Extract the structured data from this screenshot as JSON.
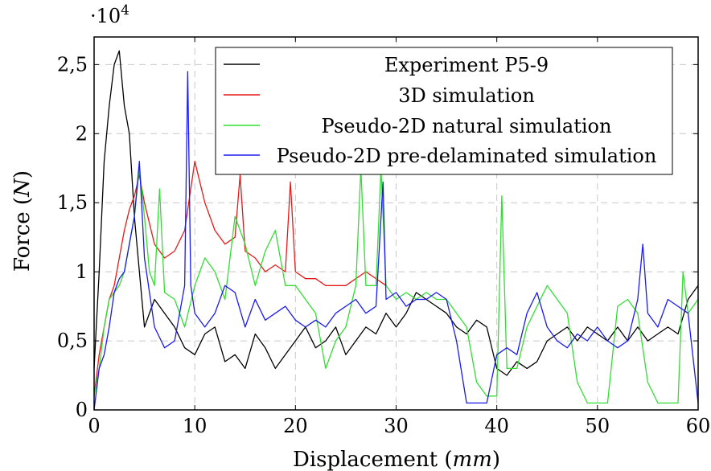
{
  "chart_data": {
    "type": "line",
    "title": "",
    "xlabel": "Displacement",
    "xlabel_unit": "mm",
    "ylabel": "Force",
    "ylabel_unit": "N",
    "y_multiplier": "·10",
    "y_multiplier_exp": "4",
    "xlim": [
      0,
      60
    ],
    "ylim": [
      0,
      2.7
    ],
    "x_ticks": [
      0,
      10,
      20,
      30,
      40,
      50,
      60
    ],
    "x_tick_labels": [
      "0",
      "10",
      "20",
      "30",
      "40",
      "50",
      "60"
    ],
    "y_ticks": [
      0,
      0.5,
      1,
      1.5,
      2,
      2.5
    ],
    "y_tick_labels": [
      "0",
      "0,5",
      "1",
      "1,5",
      "2",
      "2,5"
    ],
    "grid": true,
    "legend_position": "top-right",
    "series": [
      {
        "name": "Experiment P5-9",
        "color": "#000000",
        "x": [
          0,
          0.5,
          1,
          1.5,
          2,
          2.5,
          3,
          3.5,
          4,
          4.5,
          5,
          6,
          7,
          8,
          9,
          10,
          11,
          12,
          13,
          14,
          15,
          16,
          17,
          18,
          19,
          20,
          21,
          22,
          23,
          24,
          25,
          26,
          27,
          28,
          29,
          30,
          31,
          32,
          33,
          34,
          35,
          36,
          37,
          38,
          39,
          40,
          41,
          42,
          43,
          44,
          45,
          46,
          47,
          48,
          49,
          50,
          51,
          52,
          53,
          54,
          55,
          56,
          57,
          58,
          59,
          60
        ],
        "y": [
          0.3,
          1.0,
          1.8,
          2.2,
          2.5,
          2.6,
          2.2,
          2.0,
          1.4,
          1.0,
          0.6,
          0.8,
          0.7,
          0.6,
          0.45,
          0.4,
          0.55,
          0.6,
          0.35,
          0.4,
          0.3,
          0.55,
          0.45,
          0.3,
          0.4,
          0.5,
          0.6,
          0.45,
          0.5,
          0.6,
          0.4,
          0.5,
          0.6,
          0.55,
          0.7,
          0.6,
          0.7,
          0.85,
          0.8,
          0.75,
          0.7,
          0.6,
          0.55,
          0.65,
          0.6,
          0.3,
          0.25,
          0.35,
          0.3,
          0.35,
          0.5,
          0.55,
          0.6,
          0.5,
          0.6,
          0.55,
          0.5,
          0.6,
          0.5,
          0.6,
          0.5,
          0.55,
          0.6,
          0.55,
          0.8,
          0.9
        ]
      },
      {
        "name": "3D simulation",
        "color": "#e41a1a",
        "x": [
          0,
          0.5,
          1,
          1.5,
          2,
          2.5,
          3,
          3.5,
          4,
          4.5,
          5,
          6,
          7,
          8,
          9,
          10,
          11,
          12,
          13,
          14,
          14.5,
          15,
          16,
          17,
          18,
          19,
          19.5,
          20,
          21,
          22,
          23,
          24,
          25,
          26,
          27,
          28,
          29
        ],
        "y": [
          0.1,
          0.4,
          0.6,
          0.8,
          0.9,
          1.1,
          1.3,
          1.45,
          1.55,
          1.7,
          1.5,
          1.2,
          1.1,
          1.15,
          1.3,
          1.8,
          1.5,
          1.3,
          1.2,
          1.25,
          1.7,
          1.15,
          1.1,
          1.0,
          1.05,
          1.0,
          1.65,
          1.0,
          0.95,
          0.95,
          0.9,
          0.9,
          0.9,
          0.95,
          1.0,
          0.95,
          0.9
        ]
      },
      {
        "name": "Pseudo-2D natural simulation",
        "color": "#33dd33",
        "x": [
          0,
          0.5,
          1,
          1.5,
          2,
          2.5,
          3,
          3.5,
          4,
          4.5,
          5,
          5.5,
          6,
          6.5,
          7,
          8,
          9,
          10,
          11,
          12,
          13,
          14,
          15,
          16,
          17,
          18,
          19,
          20,
          21,
          22,
          23,
          24,
          25,
          26,
          26.5,
          27,
          28,
          28.5,
          29,
          30,
          31,
          32,
          33,
          34,
          35,
          36,
          37,
          38,
          39,
          40,
          40.5,
          41,
          42,
          43,
          44,
          45,
          46,
          47,
          48,
          49,
          50,
          51,
          52,
          53,
          54,
          55,
          56,
          57,
          58,
          58.5,
          59,
          60
        ],
        "y": [
          0.1,
          0.3,
          0.6,
          0.8,
          0.85,
          0.9,
          1.0,
          1.2,
          1.4,
          1.75,
          1.4,
          1.0,
          0.9,
          1.6,
          0.85,
          0.8,
          0.6,
          0.9,
          1.1,
          1.0,
          0.8,
          1.4,
          1.2,
          0.9,
          1.15,
          1.3,
          0.9,
          0.9,
          0.8,
          0.7,
          0.3,
          0.5,
          0.6,
          0.9,
          1.75,
          0.9,
          0.9,
          1.75,
          0.9,
          0.8,
          0.85,
          0.8,
          0.85,
          0.8,
          0.8,
          0.7,
          0.6,
          0.2,
          0.1,
          0.1,
          1.55,
          0.3,
          0.3,
          0.6,
          0.75,
          0.9,
          0.8,
          0.7,
          0.2,
          0.05,
          0.05,
          0.05,
          0.75,
          0.8,
          0.7,
          0.2,
          0.05,
          0.05,
          0.05,
          1.0,
          0.7,
          0.8
        ]
      },
      {
        "name": "Pseudo-2D pre-delaminated simulation",
        "color": "#1a1aee",
        "x": [
          0,
          0.5,
          1,
          1.5,
          2,
          2.5,
          3,
          3.5,
          4,
          4.5,
          5,
          6,
          7,
          8,
          9,
          9.3,
          9.6,
          10,
          11,
          12,
          13,
          14,
          15,
          16,
          17,
          18,
          19,
          20,
          21,
          22,
          23,
          24,
          25,
          26,
          27,
          28,
          28.7,
          29,
          30,
          31,
          32,
          33,
          34,
          35,
          36,
          37,
          38,
          39,
          40,
          41,
          42,
          43,
          44,
          45,
          46,
          47,
          48,
          49,
          50,
          51,
          52,
          53,
          54,
          54.5,
          55,
          56,
          57,
          58,
          59,
          60
        ],
        "y": [
          0.0,
          0.3,
          0.4,
          0.6,
          0.85,
          0.95,
          1.0,
          1.2,
          1.4,
          1.8,
          1.1,
          0.6,
          0.45,
          0.5,
          0.9,
          2.45,
          0.9,
          0.7,
          0.6,
          0.7,
          0.9,
          0.85,
          0.6,
          0.8,
          0.65,
          0.7,
          0.75,
          0.65,
          0.6,
          0.65,
          0.6,
          0.7,
          0.75,
          0.8,
          0.7,
          0.75,
          1.65,
          0.8,
          0.85,
          0.75,
          0.8,
          0.8,
          0.85,
          0.8,
          0.5,
          0.05,
          0.05,
          0.05,
          0.4,
          0.45,
          0.4,
          0.7,
          0.85,
          0.6,
          0.5,
          0.45,
          0.55,
          0.5,
          0.6,
          0.5,
          0.45,
          0.5,
          0.8,
          1.2,
          0.7,
          0.6,
          0.8,
          0.75,
          0.7,
          0.05
        ]
      }
    ]
  }
}
